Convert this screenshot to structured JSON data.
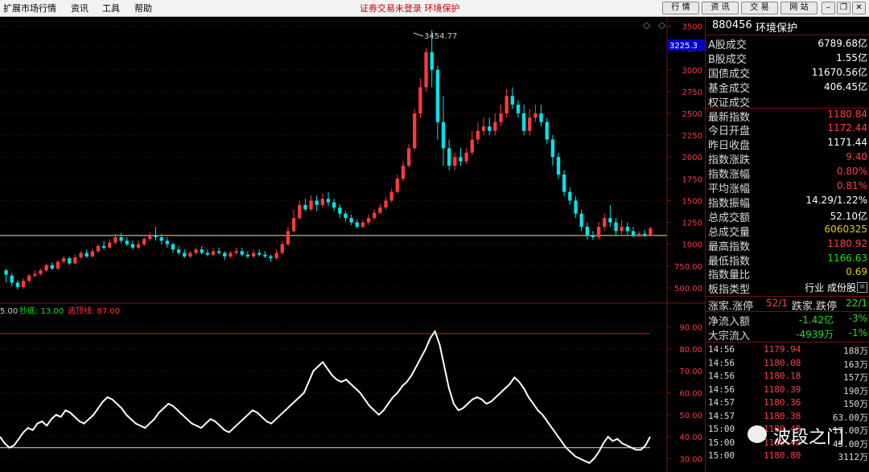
{
  "menu": {
    "items": [
      "扩展市场行情",
      "资讯",
      "工具",
      "帮助"
    ],
    "notice": "证券交易未登录  环境保护",
    "buttons": [
      "行 情",
      "资 讯",
      "交 易",
      "网 站"
    ]
  },
  "colors": {
    "up": "#ff3a3a",
    "down": "#00e5ee",
    "accent_red": "#d00000",
    "line_white": "#ffffff",
    "hline": "#f0e68c"
  },
  "chart_data": [
    {
      "type": "candlestick",
      "title": "",
      "annotation_peak": "3454.77",
      "current_level_label": "3225.3",
      "yticks": [
        "3500",
        "3250",
        "3000",
        "2750",
        "2500",
        "2250",
        "2000",
        "1750",
        "1500",
        "1250",
        "1000",
        "750.00",
        "500.00"
      ],
      "ylim": [
        380,
        3560
      ],
      "horizontal_line": 1100,
      "candles": [
        [
          700,
          650,
          720,
          560
        ],
        [
          640,
          560,
          670,
          520
        ],
        [
          560,
          510,
          590,
          480
        ],
        [
          510,
          580,
          610,
          490
        ],
        [
          580,
          640,
          660,
          560
        ],
        [
          640,
          660,
          700,
          620
        ],
        [
          660,
          700,
          720,
          640
        ],
        [
          700,
          760,
          780,
          680
        ],
        [
          760,
          720,
          790,
          700
        ],
        [
          720,
          800,
          820,
          700
        ],
        [
          800,
          840,
          860,
          780
        ],
        [
          840,
          780,
          860,
          760
        ],
        [
          780,
          850,
          880,
          770
        ],
        [
          850,
          900,
          920,
          830
        ],
        [
          900,
          860,
          940,
          840
        ],
        [
          860,
          920,
          950,
          850
        ],
        [
          920,
          980,
          1000,
          900
        ],
        [
          980,
          960,
          1040,
          940
        ],
        [
          960,
          1020,
          1060,
          950
        ],
        [
          1020,
          1080,
          1120,
          1000
        ],
        [
          1080,
          1040,
          1130,
          1010
        ],
        [
          1040,
          1000,
          1080,
          980
        ],
        [
          1000,
          960,
          1040,
          940
        ],
        [
          960,
          1000,
          1040,
          940
        ],
        [
          1000,
          1060,
          1080,
          980
        ],
        [
          1060,
          1100,
          1140,
          1040
        ],
        [
          1100,
          1080,
          1200,
          1040
        ],
        [
          1080,
          1040,
          1120,
          1000
        ],
        [
          1040,
          1000,
          1080,
          960
        ],
        [
          1000,
          940,
          1020,
          900
        ],
        [
          940,
          900,
          980,
          880
        ],
        [
          900,
          860,
          940,
          840
        ],
        [
          860,
          900,
          920,
          840
        ],
        [
          900,
          940,
          960,
          880
        ],
        [
          940,
          900,
          980,
          880
        ],
        [
          900,
          880,
          940,
          860
        ],
        [
          880,
          920,
          960,
          860
        ],
        [
          920,
          900,
          960,
          880
        ],
        [
          900,
          860,
          920,
          820
        ],
        [
          860,
          900,
          920,
          840
        ],
        [
          900,
          920,
          960,
          880
        ],
        [
          920,
          880,
          960,
          860
        ],
        [
          880,
          860,
          920,
          840
        ],
        [
          860,
          900,
          940,
          840
        ],
        [
          900,
          880,
          940,
          860
        ],
        [
          880,
          860,
          920,
          840
        ],
        [
          860,
          840,
          880,
          800
        ],
        [
          840,
          900,
          940,
          820
        ],
        [
          900,
          1000,
          1040,
          880
        ],
        [
          1000,
          1150,
          1200,
          980
        ],
        [
          1150,
          1300,
          1400,
          1140
        ],
        [
          1300,
          1450,
          1500,
          1280
        ],
        [
          1450,
          1400,
          1520,
          1380
        ],
        [
          1400,
          1500,
          1560,
          1380
        ],
        [
          1500,
          1450,
          1560,
          1380
        ],
        [
          1450,
          1520,
          1580,
          1420
        ],
        [
          1520,
          1480,
          1600,
          1440
        ],
        [
          1480,
          1420,
          1520,
          1380
        ],
        [
          1420,
          1350,
          1460,
          1300
        ],
        [
          1350,
          1300,
          1380,
          1260
        ],
        [
          1300,
          1250,
          1340,
          1220
        ],
        [
          1250,
          1200,
          1280,
          1180
        ],
        [
          1200,
          1250,
          1280,
          1180
        ],
        [
          1250,
          1300,
          1340,
          1220
        ],
        [
          1300,
          1360,
          1400,
          1280
        ],
        [
          1360,
          1420,
          1460,
          1340
        ],
        [
          1420,
          1500,
          1540,
          1400
        ],
        [
          1500,
          1600,
          1640,
          1480
        ],
        [
          1600,
          1750,
          1800,
          1580
        ],
        [
          1750,
          1900,
          1950,
          1720
        ],
        [
          1900,
          2100,
          2150,
          1880
        ],
        [
          2100,
          2500,
          2550,
          2080
        ],
        [
          2500,
          2800,
          2900,
          2450
        ],
        [
          2800,
          3200,
          3250,
          2750
        ],
        [
          3200,
          3000,
          3454,
          2800
        ],
        [
          3000,
          2400,
          3050,
          2200
        ],
        [
          2400,
          2100,
          2700,
          1900
        ],
        [
          2100,
          1900,
          2200,
          1850
        ],
        [
          1900,
          2000,
          2050,
          1850
        ],
        [
          2000,
          1950,
          2100,
          1900
        ],
        [
          1950,
          2050,
          2100,
          1920
        ],
        [
          2050,
          2200,
          2300,
          2020
        ],
        [
          2200,
          2300,
          2400,
          2150
        ],
        [
          2300,
          2350,
          2450,
          2250
        ],
        [
          2350,
          2300,
          2450,
          2250
        ],
        [
          2300,
          2400,
          2500,
          2250
        ],
        [
          2400,
          2500,
          2600,
          2350
        ],
        [
          2500,
          2700,
          2780,
          2450
        ],
        [
          2700,
          2600,
          2800,
          2550
        ],
        [
          2600,
          2500,
          2650,
          2450
        ],
        [
          2500,
          2300,
          2600,
          2250
        ],
        [
          2300,
          2450,
          2550,
          2250
        ],
        [
          2450,
          2500,
          2600,
          2400
        ],
        [
          2500,
          2400,
          2600,
          2350
        ],
        [
          2400,
          2200,
          2450,
          2150
        ],
        [
          2200,
          2000,
          2250,
          1900
        ],
        [
          2000,
          1800,
          2050,
          1750
        ],
        [
          1800,
          1600,
          1850,
          1550
        ],
        [
          1600,
          1500,
          1650,
          1450
        ],
        [
          1500,
          1350,
          1550,
          1300
        ],
        [
          1350,
          1200,
          1400,
          1150
        ],
        [
          1200,
          1100,
          1250,
          1050
        ],
        [
          1100,
          1080,
          1150,
          1050
        ],
        [
          1080,
          1200,
          1250,
          1050
        ],
        [
          1200,
          1300,
          1350,
          1150
        ],
        [
          1300,
          1250,
          1450,
          1200
        ],
        [
          1250,
          1150,
          1300,
          1100
        ],
        [
          1150,
          1200,
          1280,
          1100
        ],
        [
          1200,
          1150,
          1250,
          1100
        ],
        [
          1150,
          1100,
          1200,
          1080
        ],
        [
          1100,
          1120,
          1150,
          1080
        ],
        [
          1120,
          1100,
          1160,
          1080
        ],
        [
          1100,
          1181,
          1200,
          1090
        ]
      ]
    },
    {
      "type": "line",
      "legend": {
        "prefix": "5.00",
        "a_label": "抄底: 13.00",
        "b_label": "逃顶线: 87.00"
      },
      "yticks": [
        "90.00",
        "80.00",
        "70.00",
        "60.00",
        "50.00",
        "40.00",
        "30.00"
      ],
      "ylim": [
        25,
        95
      ],
      "hlines": [
        87,
        35
      ],
      "values": [
        40,
        37,
        35,
        36,
        39,
        42,
        44,
        43,
        46,
        47,
        45,
        48,
        50,
        49,
        52,
        51,
        49,
        47,
        46,
        48,
        50,
        53,
        56,
        58,
        57,
        55,
        53,
        50,
        48,
        46,
        45,
        44,
        46,
        48,
        51,
        53,
        55,
        54,
        52,
        50,
        48,
        46,
        45,
        44,
        46,
        48,
        47,
        45,
        43,
        42,
        44,
        46,
        48,
        50,
        52,
        51,
        49,
        47,
        46,
        48,
        50,
        52,
        54,
        56,
        58,
        60,
        65,
        70,
        72,
        74,
        71,
        68,
        66,
        65,
        66,
        64,
        62,
        60,
        57,
        54,
        52,
        50,
        52,
        55,
        58,
        60,
        63,
        65,
        68,
        72,
        76,
        80,
        85,
        88,
        82,
        72,
        62,
        55,
        52,
        53,
        55,
        57,
        58,
        57,
        55,
        56,
        58,
        60,
        62,
        64,
        67,
        65,
        62,
        58,
        55,
        52,
        50,
        47,
        44,
        41,
        38,
        35,
        33,
        31,
        30,
        29,
        28,
        30,
        33,
        37,
        40,
        38,
        39,
        37,
        36,
        35,
        34,
        34,
        36,
        40
      ]
    }
  ],
  "panel": {
    "code": "880456",
    "name": "环境保护",
    "rows": [
      {
        "label": "A股成交",
        "value": "6789.68亿",
        "color": "white"
      },
      {
        "label": "B股成交",
        "value": "1.55亿",
        "color": "white"
      },
      {
        "label": "国债成交",
        "value": "11670.56亿",
        "color": "white"
      },
      {
        "label": "基金成交",
        "value": "406.45亿",
        "color": "white"
      },
      {
        "label": "权证成交",
        "value": "",
        "color": "white"
      },
      {
        "label": "最新指数",
        "value": "1180.84",
        "color": "red"
      },
      {
        "label": "今日开盘",
        "value": "1172.44",
        "color": "red"
      },
      {
        "label": "昨日收盘",
        "value": "1171.44",
        "color": "white"
      },
      {
        "label": "指数涨跌",
        "value": "9.40",
        "color": "red"
      },
      {
        "label": "指数涨幅",
        "value": "0.80%",
        "color": "red"
      },
      {
        "label": "平均涨幅",
        "value": "0.81%",
        "color": "red"
      },
      {
        "label": "指数振幅",
        "value": "14.29/1.22%",
        "color": "white"
      },
      {
        "label": "总成交额",
        "value": "52.10亿",
        "color": "white"
      },
      {
        "label": "总成交量",
        "value": "6060325",
        "color": "yellow"
      },
      {
        "label": "最高指数",
        "value": "1180.92",
        "color": "red"
      },
      {
        "label": "最低指数",
        "value": "1166.63",
        "color": "green"
      },
      {
        "label": "指数量比",
        "value": "0.69",
        "color": "yellow"
      },
      {
        "label": "板指类型",
        "value": "行业 成份股",
        "color": "white"
      }
    ],
    "updown": {
      "l1": "涨家.涨停",
      "v1": "52/1",
      "l2": "跌家.跌停",
      "v2": "22/1"
    },
    "flow": [
      {
        "label": "净流入额",
        "v1": "-1.42亿",
        "v2": "-3%"
      },
      {
        "label": "大宗流入",
        "v1": "-4939万",
        "v2": "-1%"
      }
    ],
    "ticks": [
      {
        "time": "14:56",
        "price": "1179.94",
        "vol": "188万"
      },
      {
        "time": "14:56",
        "price": "1180.08",
        "vol": "163万"
      },
      {
        "time": "14:56",
        "price": "1180.18",
        "vol": "157万"
      },
      {
        "time": "14:56",
        "price": "1180.39",
        "vol": "190万"
      },
      {
        "time": "14:57",
        "price": "1180.36",
        "vol": "150万"
      },
      {
        "time": "14:57",
        "price": "1180.38",
        "vol": "63.00万"
      },
      {
        "time": "15:00",
        "price": "1180.40",
        "vol": "17.00万"
      },
      {
        "time": "15:00",
        "price": "1180.48",
        "vol": "45.00万"
      },
      {
        "time": "15:00",
        "price": "1180.80",
        "vol": "3112万"
      }
    ]
  },
  "watermark": "波段之门"
}
